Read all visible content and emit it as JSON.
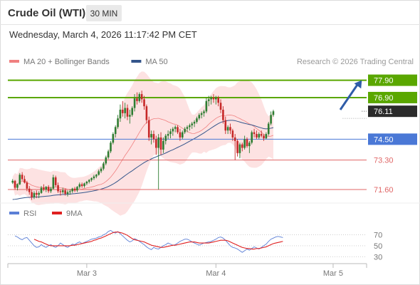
{
  "header": {
    "instrument": "Crude Oil (WTI)",
    "timeframe": "30 MIN",
    "timestamp": "Wednesday, March 4, 2026 11:17:42 PM CET"
  },
  "colors": {
    "bullish": "#2e7d32",
    "bearish": "#c62828",
    "bollinger_fill": "#fde2e2",
    "ma20": "#f08080",
    "ma50": "#34558b",
    "resistance": "#5aa700",
    "pivot": "#4a78d6",
    "support": "#e06666",
    "current": "#2b2b2b",
    "rsi": "#5b7fd6",
    "rsi_ma": "#e02020",
    "arrow": "#2f5ca8"
  },
  "chart_data": [
    {
      "type": "candlestick",
      "legend": [
        {
          "name": "MA 20 + Bollinger Bands",
          "color": "#f08080"
        },
        {
          "name": "MA 50",
          "color": "#34558b"
        }
      ],
      "attribution": "Research © 2026 Trading Central",
      "ylim": [
        70.9,
        78.5
      ],
      "x_range": [
        0,
        150
      ],
      "x_ticks": [
        {
          "x": 33,
          "label": "Mar 3"
        },
        {
          "x": 87,
          "label": "Mar 4"
        },
        {
          "x": 136,
          "label": "Mar 5"
        }
      ],
      "candles": [
        [
          72.0,
          72.2,
          71.92,
          72.1
        ],
        [
          72.1,
          72.15,
          71.6,
          71.7
        ],
        [
          71.7,
          71.95,
          71.55,
          71.9
        ],
        [
          71.9,
          72.55,
          71.85,
          72.45
        ],
        [
          72.45,
          72.6,
          72.1,
          72.2
        ],
        [
          72.2,
          72.4,
          71.95,
          72.0
        ],
        [
          72.0,
          72.1,
          71.5,
          71.65
        ],
        [
          71.65,
          71.8,
          71.3,
          71.45
        ],
        [
          71.45,
          71.6,
          71.0,
          71.15
        ],
        [
          71.15,
          71.5,
          71.05,
          71.4
        ],
        [
          71.4,
          71.55,
          71.1,
          71.3
        ],
        [
          71.3,
          71.5,
          71.1,
          71.4
        ],
        [
          71.4,
          71.8,
          71.35,
          71.7
        ],
        [
          71.7,
          71.9,
          71.5,
          71.6
        ],
        [
          71.6,
          71.8,
          71.45,
          71.75
        ],
        [
          71.75,
          71.85,
          71.4,
          71.5
        ],
        [
          71.5,
          71.75,
          71.4,
          71.65
        ],
        [
          71.65,
          72.45,
          71.6,
          72.3
        ],
        [
          72.3,
          72.4,
          71.75,
          71.85
        ],
        [
          71.85,
          72.0,
          71.4,
          71.5
        ],
        [
          71.5,
          71.6,
          71.25,
          71.45
        ],
        [
          71.45,
          71.7,
          71.35,
          71.55
        ],
        [
          71.55,
          71.65,
          71.25,
          71.35
        ],
        [
          71.35,
          71.55,
          71.2,
          71.45
        ],
        [
          71.45,
          71.6,
          71.3,
          71.5
        ],
        [
          71.5,
          71.7,
          71.4,
          71.65
        ],
        [
          71.65,
          71.75,
          71.45,
          71.55
        ],
        [
          71.55,
          71.8,
          71.45,
          71.75
        ],
        [
          71.75,
          72.0,
          71.65,
          71.9
        ],
        [
          71.9,
          72.0,
          71.7,
          71.8
        ],
        [
          71.8,
          72.0,
          71.7,
          71.95
        ],
        [
          71.95,
          72.1,
          71.85,
          72.05
        ],
        [
          72.05,
          72.2,
          71.95,
          72.15
        ],
        [
          72.15,
          72.3,
          72.05,
          72.25
        ],
        [
          72.25,
          72.45,
          72.15,
          72.35
        ],
        [
          72.35,
          72.5,
          72.25,
          72.45
        ],
        [
          72.45,
          72.75,
          72.4,
          72.65
        ],
        [
          72.65,
          72.9,
          72.55,
          72.8
        ],
        [
          72.8,
          73.2,
          72.7,
          73.1
        ],
        [
          73.1,
          73.55,
          73.0,
          73.45
        ],
        [
          73.45,
          73.9,
          73.35,
          73.8
        ],
        [
          73.8,
          74.4,
          73.7,
          74.3
        ],
        [
          74.3,
          74.9,
          74.2,
          74.8
        ],
        [
          74.8,
          75.3,
          74.6,
          75.2
        ],
        [
          75.2,
          75.9,
          75.1,
          75.7
        ],
        [
          75.7,
          76.5,
          75.5,
          76.2
        ],
        [
          76.2,
          76.7,
          75.8,
          76.0
        ],
        [
          76.0,
          76.6,
          75.7,
          76.3
        ],
        [
          76.3,
          76.5,
          75.6,
          75.8
        ],
        [
          75.8,
          76.2,
          75.4,
          75.9
        ],
        [
          75.9,
          76.4,
          75.8,
          76.3
        ],
        [
          76.3,
          77.1,
          76.1,
          76.85
        ],
        [
          76.85,
          77.2,
          76.5,
          76.7
        ],
        [
          76.7,
          77.2,
          76.6,
          77.1
        ],
        [
          77.1,
          77.3,
          76.6,
          76.8
        ],
        [
          76.8,
          77.0,
          76.2,
          76.4
        ],
        [
          76.4,
          76.5,
          75.4,
          75.6
        ],
        [
          75.6,
          75.8,
          74.4,
          74.6
        ],
        [
          74.6,
          75.0,
          74.2,
          74.8
        ],
        [
          74.8,
          75.0,
          74.3,
          74.5
        ],
        [
          74.5,
          74.7,
          73.6,
          74.0
        ],
        [
          74.0,
          74.8,
          71.6,
          74.6
        ],
        [
          74.6,
          74.9,
          73.6,
          73.9
        ],
        [
          73.9,
          74.6,
          73.7,
          74.4
        ],
        [
          74.4,
          74.8,
          74.2,
          74.7
        ],
        [
          74.7,
          75.0,
          74.5,
          74.8
        ],
        [
          74.8,
          75.1,
          74.55,
          74.95
        ],
        [
          74.95,
          75.2,
          74.7,
          75.1
        ],
        [
          75.1,
          75.3,
          74.9,
          75.2
        ],
        [
          75.2,
          75.3,
          74.8,
          74.9
        ],
        [
          74.9,
          75.1,
          74.4,
          74.6
        ],
        [
          74.6,
          75.0,
          74.5,
          74.9
        ],
        [
          74.9,
          75.2,
          74.8,
          75.1
        ],
        [
          75.1,
          75.3,
          74.9,
          75.2
        ],
        [
          75.2,
          75.4,
          75.0,
          75.3
        ],
        [
          75.3,
          75.5,
          75.1,
          75.4
        ],
        [
          75.4,
          75.6,
          75.2,
          75.5
        ],
        [
          75.5,
          75.8,
          75.4,
          75.7
        ],
        [
          75.7,
          76.0,
          75.6,
          75.9
        ],
        [
          75.9,
          76.1,
          75.7,
          76.0
        ],
        [
          76.0,
          76.2,
          75.8,
          76.1
        ],
        [
          76.1,
          76.9,
          76.0,
          76.7
        ],
        [
          76.7,
          77.0,
          76.4,
          76.8
        ],
        [
          76.8,
          77.0,
          76.5,
          76.9
        ],
        [
          76.9,
          77.1,
          76.6,
          76.8
        ],
        [
          76.8,
          77.0,
          76.5,
          76.9
        ],
        [
          76.9,
          77.0,
          76.4,
          76.6
        ],
        [
          76.6,
          76.8,
          76.0,
          76.2
        ],
        [
          76.2,
          76.4,
          75.4,
          75.6
        ],
        [
          75.6,
          75.8,
          74.8,
          75.0
        ],
        [
          75.0,
          75.3,
          74.8,
          75.2
        ],
        [
          75.2,
          75.4,
          74.8,
          75.0
        ],
        [
          75.0,
          75.1,
          74.4,
          74.6
        ],
        [
          74.6,
          74.8,
          73.3,
          74.4
        ],
        [
          74.4,
          74.5,
          73.5,
          73.7
        ],
        [
          73.7,
          74.3,
          73.4,
          74.2
        ],
        [
          74.2,
          74.3,
          73.8,
          74.0
        ],
        [
          74.0,
          74.7,
          73.9,
          74.5
        ],
        [
          74.5,
          74.6,
          74.0,
          74.1
        ],
        [
          74.1,
          74.4,
          73.7,
          74.3
        ],
        [
          74.3,
          75.0,
          74.2,
          74.9
        ],
        [
          74.9,
          75.1,
          74.6,
          74.8
        ],
        [
          74.8,
          75.0,
          74.5,
          74.6
        ],
        [
          74.6,
          74.9,
          74.5,
          74.8
        ],
        [
          74.8,
          75.0,
          74.6,
          74.7
        ],
        [
          74.7,
          74.8,
          74.4,
          74.55
        ],
        [
          74.55,
          74.9,
          74.5,
          74.8
        ],
        [
          74.8,
          75.5,
          74.7,
          75.4
        ],
        [
          75.4,
          76.1,
          75.3,
          75.9
        ],
        [
          75.9,
          76.2,
          75.8,
          76.11
        ]
      ],
      "x_offset_candles": 2,
      "levels": [
        {
          "value": 77.9,
          "label": "77.90",
          "kind": "resistance"
        },
        {
          "value": 76.9,
          "label": "76.90",
          "kind": "resistance"
        },
        {
          "value": 76.11,
          "label": "76.11",
          "kind": "current"
        },
        {
          "value": 74.5,
          "label": "74.50",
          "kind": "pivot"
        },
        {
          "value": 73.3,
          "label": "73.30",
          "kind": "support"
        },
        {
          "value": 71.6,
          "label": "71.60",
          "kind": "support"
        }
      ],
      "arrow": {
        "from": [
          139,
          76.2
        ],
        "to": [
          148,
          77.9
        ]
      }
    },
    {
      "type": "line",
      "legend": [
        {
          "name": "RSI",
          "color": "#5b7fd6"
        },
        {
          "name": "9MA",
          "color": "#e02020"
        }
      ],
      "ylim": [
        20,
        85
      ],
      "y_ticks": [
        70,
        50,
        30
      ],
      "series": [
        {
          "name": "RSI",
          "values": [
            68,
            66,
            63,
            61,
            64,
            65,
            60,
            55,
            50,
            47,
            48,
            52,
            49,
            47,
            50,
            52,
            49,
            47,
            50,
            55,
            52,
            49,
            47,
            50,
            53,
            52,
            55,
            57,
            54,
            56,
            58,
            60,
            62,
            63,
            64,
            66,
            67,
            70,
            72,
            76,
            78,
            75,
            73,
            76,
            72,
            68,
            64,
            60,
            57,
            59,
            63,
            61,
            58,
            55,
            52,
            48,
            45,
            43,
            47,
            45,
            44,
            47,
            50,
            52,
            55,
            53,
            51,
            52,
            55,
            58,
            60,
            62,
            62,
            60,
            57,
            55,
            53,
            51,
            53,
            55,
            56,
            57,
            58,
            60,
            62,
            65,
            66,
            64,
            60,
            55,
            50,
            47,
            46,
            44,
            41,
            38,
            41,
            44,
            42,
            45,
            48,
            46,
            44,
            47,
            50,
            53,
            58,
            62,
            64,
            66,
            67,
            66,
            65
          ]
        },
        {
          "name": "9MA",
          "values": [
            null,
            null,
            null,
            null,
            null,
            null,
            null,
            null,
            62,
            60,
            58,
            57,
            55,
            53,
            51,
            50,
            50,
            50,
            50,
            50,
            50,
            50,
            50,
            50,
            51,
            51,
            52,
            53,
            54,
            55,
            56,
            57,
            58,
            60,
            61,
            63,
            64,
            66,
            68,
            70,
            72,
            74,
            75,
            75,
            74,
            73,
            71,
            69,
            66,
            63,
            61,
            60,
            59,
            58,
            57,
            55,
            53,
            51,
            50,
            49,
            48,
            47,
            47,
            48,
            49,
            50,
            51,
            51,
            52,
            53,
            54,
            55,
            56,
            57,
            57,
            57,
            56,
            55,
            55,
            55,
            55,
            55,
            56,
            57,
            58,
            59,
            60,
            60,
            60,
            59,
            57,
            55,
            53,
            51,
            49,
            47,
            46,
            45,
            45,
            44,
            44,
            45,
            45,
            46,
            47,
            48,
            50,
            52,
            54,
            55,
            56,
            57,
            58
          ]
        }
      ]
    }
  ]
}
